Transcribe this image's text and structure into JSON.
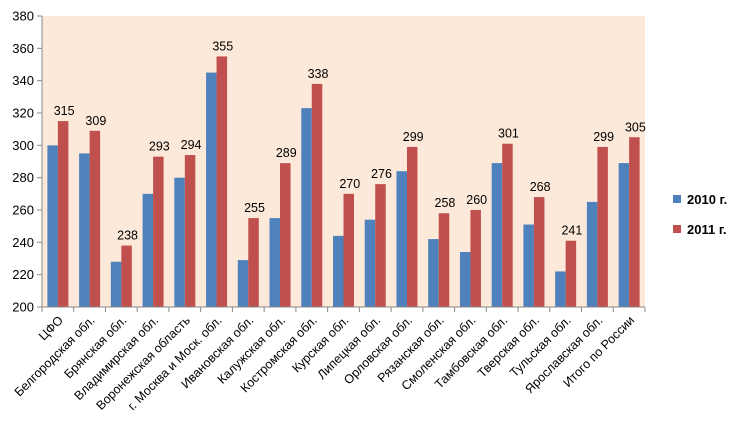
{
  "chart_data": {
    "type": "bar",
    "title": "",
    "xlabel": "",
    "ylabel": "",
    "ylim": [
      200,
      380
    ],
    "yticks": [
      200,
      220,
      240,
      260,
      280,
      300,
      320,
      340,
      360,
      380
    ],
    "grid": false,
    "legend_position": "right",
    "categories": [
      "ЦФО",
      "Белгородская обл.",
      "Брянская обл.",
      "Владимирская обл.",
      "Воронежская область",
      "г. Москва и Моск. обл.",
      "Ивановская обл.",
      "Калужская обл.",
      "Костромская обл.",
      "Курская обл.",
      "Липецкая обл.",
      "Орловская обл.",
      "Рязанская обл.",
      "Смоленская обл.",
      "Тамбовская обл.",
      "Тверская обл.",
      "Тульская обл.",
      "Ярославская обл.",
      "Итого по России"
    ],
    "series": [
      {
        "name": "2010 г.",
        "color": "#4F81BD",
        "values": [
          300,
          295,
          228,
          270,
          280,
          345,
          229,
          255,
          323,
          244,
          254,
          284,
          242,
          234,
          289,
          251,
          222,
          265,
          289
        ],
        "show_labels": false
      },
      {
        "name": "2011 г.",
        "color": "#C0504D",
        "values": [
          315,
          309,
          238,
          293,
          294,
          355,
          255,
          289,
          338,
          270,
          276,
          299,
          258,
          260,
          301,
          268,
          241,
          299,
          305
        ],
        "show_labels": true
      }
    ],
    "plot_background": "#FDE9D9"
  }
}
